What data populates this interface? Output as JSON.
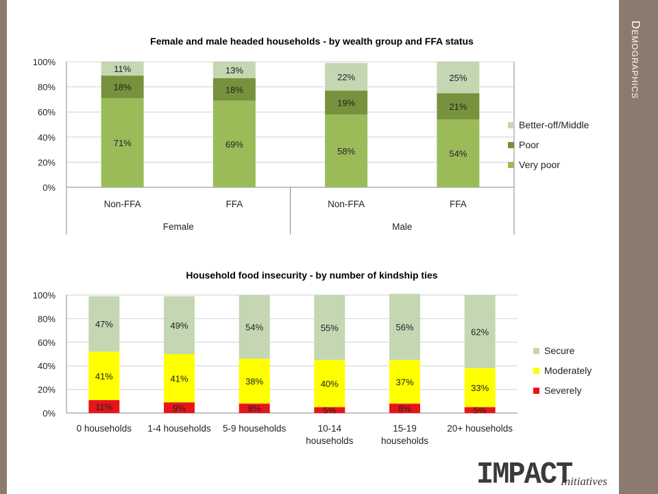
{
  "sidebar": {
    "title": "Demographics"
  },
  "logo": {
    "main": "IMPACT",
    "sub": "Initiatives"
  },
  "chart_data": [
    {
      "type": "bar",
      "stacked": true,
      "title": "Female and male headed households - by wealth group and FFA status",
      "categories": [
        "Non-FFA",
        "FFA",
        "Non-FFA",
        "FFA"
      ],
      "groups": [
        {
          "label": "Female",
          "categories": [
            "Non-FFA",
            "FFA"
          ]
        },
        {
          "label": "Male",
          "categories": [
            "Non-FFA",
            "FFA"
          ]
        }
      ],
      "ylim": [
        0,
        100
      ],
      "yticks": [
        "0%",
        "20%",
        "40%",
        "60%",
        "80%",
        "100%"
      ],
      "legend_position": "right",
      "series": [
        {
          "name": "Very poor",
          "color": "#9bbb59",
          "values": [
            71,
            69,
            58,
            54
          ],
          "labels": [
            "71%",
            "69%",
            "58%",
            "54%"
          ]
        },
        {
          "name": "Poor",
          "color": "#76923c",
          "values": [
            18,
            18,
            19,
            21
          ],
          "labels": [
            "18%",
            "18%",
            "19%",
            "21%"
          ]
        },
        {
          "name": "Better-off/Middle",
          "color": "#c4d7b2",
          "values": [
            11,
            13,
            22,
            25
          ],
          "labels": [
            "11%",
            "13%",
            "22%",
            "25%"
          ]
        }
      ]
    },
    {
      "type": "bar",
      "stacked": true,
      "title": "Household food insecurity - by number of kindship ties",
      "categories": [
        "0 households",
        "1-4 households",
        "5-9 households",
        "10-14 households",
        "15-19 households",
        "20+ households"
      ],
      "category_lines": [
        [
          "0 households"
        ],
        [
          "1-4 households"
        ],
        [
          "5-9 households"
        ],
        [
          "10-14",
          "households"
        ],
        [
          "15-19",
          "households"
        ],
        [
          "20+ households"
        ]
      ],
      "ylim": [
        0,
        100
      ],
      "yticks": [
        "0%",
        "20%",
        "40%",
        "60%",
        "80%",
        "100%"
      ],
      "legend_position": "right",
      "series": [
        {
          "name": "Severely",
          "color": "#e8141b",
          "values": [
            11,
            9,
            8,
            5,
            8,
            5
          ],
          "labels": [
            "11%",
            "9%",
            "8%",
            "5%",
            "8%",
            "5%"
          ]
        },
        {
          "name": "Moderately",
          "color": "#ffff00",
          "values": [
            41,
            41,
            38,
            40,
            37,
            33
          ],
          "labels": [
            "41%",
            "41%",
            "38%",
            "40%",
            "37%",
            "33%"
          ]
        },
        {
          "name": "Secure",
          "color": "#c4d7b2",
          "values": [
            47,
            49,
            54,
            55,
            56,
            62
          ],
          "labels": [
            "47%",
            "49%",
            "54%",
            "55%",
            "56%",
            "62%"
          ]
        }
      ]
    }
  ]
}
